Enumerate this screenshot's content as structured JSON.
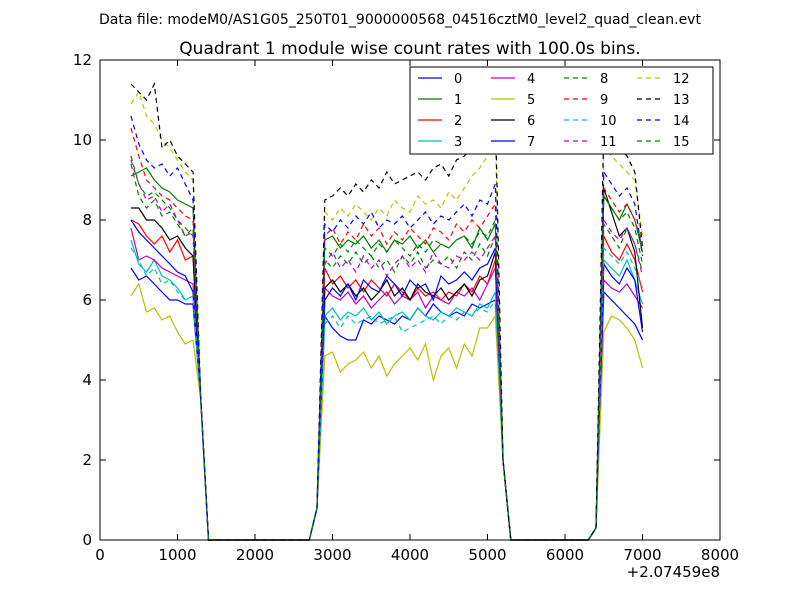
{
  "figure": {
    "suptitle": "Data file: modeM0/AS1G05_250T01_9000000568_04516cztM0_level2_quad_clean.evt"
  },
  "chart_data": {
    "type": "line",
    "title": "Quadrant 1 module wise count rates with 100.0s bins.",
    "xlabel": "",
    "ylabel": "",
    "x_offset_label": "+2.07459e8",
    "xlim": [
      0,
      8000
    ],
    "ylim": [
      0,
      12
    ],
    "xticks": [
      0,
      1000,
      2000,
      3000,
      4000,
      5000,
      6000,
      7000,
      8000
    ],
    "yticks": [
      0,
      2,
      4,
      6,
      8,
      10,
      12
    ],
    "xtick_labels": [
      "0",
      "1000",
      "2000",
      "3000",
      "4000",
      "5000",
      "6000",
      "7000",
      "8000"
    ],
    "ytick_labels": [
      "0",
      "2",
      "4",
      "6",
      "8",
      "10",
      "12"
    ],
    "grid": false,
    "legend": {
      "placement": "top-right",
      "columns": 4
    },
    "x": [
      400,
      500,
      600,
      700,
      800,
      900,
      1000,
      1100,
      1200,
      1300,
      1400,
      1500,
      1600,
      1700,
      1800,
      1900,
      2000,
      2100,
      2200,
      2300,
      2400,
      2500,
      2600,
      2700,
      2800,
      2900,
      3000,
      3100,
      3200,
      3300,
      3400,
      3500,
      3600,
      3700,
      3800,
      3900,
      4000,
      4100,
      4200,
      4300,
      4400,
      4500,
      4600,
      4700,
      4800,
      4900,
      5000,
      5100,
      5200,
      5300,
      5400,
      5500,
      5600,
      5700,
      5800,
      5900,
      6000,
      6100,
      6200,
      6300,
      6400,
      6500,
      6600,
      6700,
      6800,
      6900,
      7000,
      7100
    ],
    "series": [
      {
        "name": "0",
        "color": "#0000ff",
        "style": "solid",
        "on": [
          6.8,
          6.5,
          6.6,
          6.4,
          6.2,
          6.0,
          6.0,
          5.9,
          5.9
        ],
        "mid": [
          5.6,
          5.3,
          5.1,
          5.0,
          5.0,
          5.5,
          5.4,
          5.6,
          5.5,
          5.4,
          5.6,
          5.5,
          5.8,
          5.6,
          5.9,
          5.7,
          5.6,
          5.7,
          5.6,
          5.9,
          5.8,
          5.9,
          6.0
        ],
        "last": [
          6.2,
          6.0,
          5.8,
          5.6,
          5.4,
          5.0
        ]
      },
      {
        "name": "1",
        "color": "#008000",
        "style": "solid",
        "on": [
          9.1,
          9.2,
          9.3,
          9.0,
          8.8,
          8.7,
          8.5,
          8.4,
          8.3
        ],
        "mid": [
          7.5,
          7.6,
          7.3,
          7.5,
          7.4,
          7.6,
          7.3,
          7.5,
          7.2,
          7.5,
          7.4,
          7.6,
          7.3,
          7.5,
          7.2,
          7.4,
          7.3,
          7.5,
          7.6,
          7.3,
          7.8,
          7.5,
          7.9
        ],
        "last": [
          8.6,
          8.3,
          8.0,
          8.4,
          8.0,
          7.2
        ]
      },
      {
        "name": "2",
        "color": "#ff0000",
        "style": "solid",
        "on": [
          8.0,
          7.9,
          7.6,
          7.4,
          7.6,
          7.2,
          7.5,
          7.0,
          7.1
        ],
        "mid": [
          6.8,
          6.4,
          6.6,
          6.3,
          6.5,
          6.2,
          6.5,
          6.3,
          6.1,
          6.4,
          6.2,
          6.0,
          6.3,
          6.1,
          6.2,
          6.0,
          6.2,
          6.1,
          6.4,
          6.2,
          6.6,
          6.4,
          7.0
        ],
        "last": [
          7.6,
          7.2,
          7.0,
          7.4,
          7.0,
          6.2
        ]
      },
      {
        "name": "3",
        "color": "#00bfbf",
        "style": "solid",
        "on": [
          7.5,
          6.9,
          6.7,
          7.0,
          6.6,
          6.5,
          6.3,
          6.0,
          6.1
        ],
        "mid": [
          5.6,
          5.8,
          5.5,
          5.7,
          5.6,
          5.8,
          5.5,
          5.7,
          5.4,
          5.6,
          5.7,
          5.5,
          5.8,
          5.6,
          5.5,
          5.7,
          5.6,
          5.8,
          5.7,
          5.6,
          5.9,
          5.8,
          6.2
        ],
        "last": [
          7.0,
          6.8,
          6.6,
          7.0,
          6.5,
          5.9
        ]
      },
      {
        "name": "4",
        "color": "#bf00bf",
        "style": "solid",
        "on": [
          7.8,
          7.0,
          7.1,
          7.0,
          6.8,
          6.7,
          6.6,
          6.5,
          6.4
        ],
        "mid": [
          6.3,
          6.1,
          6.0,
          6.2,
          5.9,
          6.1,
          5.8,
          6.0,
          6.2,
          5.9,
          6.1,
          6.0,
          6.2,
          5.8,
          6.1,
          6.0,
          5.9,
          6.2,
          6.1,
          6.3,
          6.0,
          6.4,
          6.8
        ],
        "last": [
          6.5,
          6.3,
          6.2,
          6.4,
          6.1,
          5.8
        ]
      },
      {
        "name": "5",
        "color": "#bfbf00",
        "style": "solid",
        "on": [
          6.1,
          6.4,
          5.7,
          5.8,
          5.5,
          5.6,
          5.2,
          4.9,
          5.0
        ],
        "mid": [
          4.6,
          4.7,
          4.2,
          4.4,
          4.5,
          4.7,
          4.3,
          4.6,
          4.1,
          4.4,
          4.6,
          4.8,
          4.5,
          4.9,
          4.0,
          4.6,
          4.8,
          4.3,
          4.9,
          4.6,
          5.3,
          5.3,
          5.6
        ],
        "last": [
          5.2,
          5.6,
          5.5,
          5.3,
          5.0,
          4.3
        ]
      },
      {
        "name": "6",
        "color": "#000000",
        "style": "solid",
        "on": [
          8.3,
          8.3,
          8.0,
          8.0,
          7.8,
          7.5,
          7.6,
          7.3,
          7.1
        ],
        "mid": [
          6.3,
          6.5,
          6.2,
          6.4,
          6.1,
          6.3,
          6.0,
          6.2,
          6.5,
          6.1,
          6.3,
          6.0,
          6.4,
          6.2,
          6.1,
          6.3,
          6.0,
          6.2,
          6.4,
          6.1,
          6.5,
          6.6,
          7.2
        ],
        "last": [
          8.8,
          8.2,
          7.6,
          7.8,
          7.2,
          5.3
        ]
      },
      {
        "name": "7",
        "color": "#0000ff",
        "style": "solid",
        "on": [
          8.0,
          7.7,
          7.5,
          7.3,
          7.1,
          6.9,
          6.7,
          6.6,
          6.2
        ],
        "mid": [
          6.0,
          6.3,
          6.1,
          6.4,
          6.0,
          6.5,
          6.3,
          6.2,
          6.6,
          6.4,
          6.1,
          6.5,
          6.3,
          6.4,
          6.0,
          6.6,
          6.4,
          6.5,
          6.7,
          6.5,
          6.8,
          6.9,
          7.3
        ],
        "last": [
          6.9,
          6.6,
          6.4,
          6.8,
          6.5,
          5.2
        ]
      },
      {
        "name": "8",
        "color": "#008000",
        "style": "dashed",
        "on": [
          9.6,
          8.9,
          8.6,
          8.7,
          8.5,
          8.3,
          8.0,
          7.8,
          7.6
        ],
        "mid": [
          7.0,
          6.8,
          7.1,
          6.9,
          7.2,
          6.9,
          7.1,
          6.8,
          7.0,
          6.7,
          7.1,
          6.9,
          7.2,
          6.8,
          7.0,
          6.9,
          7.1,
          6.8,
          7.2,
          7.0,
          7.4,
          7.1,
          7.6
        ],
        "last": [
          7.9,
          7.6,
          7.3,
          7.8,
          7.4,
          6.7
        ]
      },
      {
        "name": "9",
        "color": "#ff0000",
        "style": "dashed",
        "on": [
          10.3,
          9.6,
          9.0,
          8.8,
          8.6,
          8.5,
          8.3,
          8.1,
          8.0
        ],
        "mid": [
          7.6,
          7.8,
          7.4,
          7.7,
          7.5,
          7.9,
          7.6,
          7.8,
          7.4,
          7.7,
          7.5,
          7.8,
          7.6,
          7.4,
          7.8,
          7.7,
          7.5,
          7.9,
          7.7,
          8.0,
          7.8,
          8.1,
          8.4
        ],
        "last": [
          8.8,
          8.5,
          8.2,
          8.4,
          8.0,
          7.4
        ]
      },
      {
        "name": "10",
        "color": "#00bfbf",
        "style": "dashed",
        "on": [
          7.3,
          7.0,
          6.6,
          6.8,
          6.4,
          6.5,
          6.2,
          6.0,
          6.1
        ],
        "mid": [
          5.4,
          5.6,
          5.3,
          5.6,
          5.4,
          5.5,
          5.6,
          5.4,
          5.5,
          5.6,
          5.2,
          5.3,
          5.4,
          5.5,
          5.6,
          5.4,
          5.6,
          5.5,
          5.7,
          5.6,
          5.8,
          5.7,
          6.0
        ],
        "last": [
          7.3,
          7.1,
          6.9,
          7.2,
          6.8,
          6.3
        ]
      },
      {
        "name": "11",
        "color": "#bf00bf",
        "style": "dashed",
        "on": [
          9.5,
          8.9,
          8.5,
          8.6,
          8.2,
          8.4,
          8.0,
          7.6,
          7.7
        ],
        "mid": [
          6.9,
          7.2,
          6.8,
          7.0,
          6.7,
          7.1,
          6.8,
          7.0,
          6.6,
          6.9,
          7.1,
          6.8,
          7.0,
          6.7,
          7.2,
          6.9,
          6.8,
          7.1,
          7.0,
          7.2,
          7.0,
          7.3,
          7.6
        ],
        "last": [
          8.0,
          7.7,
          7.5,
          7.8,
          7.4,
          6.6
        ]
      },
      {
        "name": "12",
        "color": "#bfbf00",
        "style": "dashed",
        "on": [
          10.9,
          11.2,
          10.6,
          10.4,
          10.0,
          9.8,
          9.5,
          9.2,
          9.0
        ],
        "mid": [
          8.2,
          8.0,
          8.3,
          8.1,
          8.4,
          8.2,
          8.0,
          8.3,
          8.1,
          8.5,
          8.3,
          8.2,
          8.6,
          8.4,
          8.5,
          8.3,
          8.7,
          8.5,
          8.8,
          9.1,
          9.3,
          9.6,
          10.2
        ],
        "last": [
          9.8,
          9.6,
          9.4,
          9.2,
          9.0,
          7.6
        ]
      },
      {
        "name": "13",
        "color": "#000000",
        "style": "dashed",
        "on": [
          11.4,
          11.2,
          11.0,
          11.4,
          9.8,
          10.0,
          9.6,
          9.4,
          9.2
        ],
        "mid": [
          8.5,
          8.6,
          8.8,
          8.6,
          8.9,
          8.7,
          9.0,
          8.8,
          9.2,
          8.9,
          9.0,
          9.1,
          9.2,
          9.0,
          9.3,
          9.4,
          9.1,
          9.5,
          9.6,
          9.8,
          10.0,
          10.2,
          10.8
        ],
        "last": [
          10.4,
          10.2,
          9.8,
          9.6,
          9.2,
          7.3
        ]
      },
      {
        "name": "14",
        "color": "#0000ff",
        "style": "dashed",
        "on": [
          10.6,
          9.9,
          9.5,
          9.3,
          9.4,
          9.1,
          9.3,
          8.9,
          8.5
        ],
        "mid": [
          7.9,
          7.7,
          8.0,
          7.8,
          8.1,
          7.9,
          8.2,
          7.8,
          8.0,
          7.9,
          8.1,
          7.8,
          8.0,
          8.2,
          7.9,
          8.1,
          8.0,
          8.2,
          8.4,
          8.1,
          8.5,
          8.4,
          8.9
        ],
        "last": [
          9.2,
          8.9,
          8.6,
          8.8,
          8.4,
          7.1
        ]
      },
      {
        "name": "15",
        "color": "#008000",
        "style": "dashed",
        "on": [
          9.4,
          8.6,
          8.3,
          8.5,
          8.1,
          8.2,
          7.9,
          7.6,
          7.8
        ],
        "mid": [
          7.3,
          7.1,
          7.4,
          7.2,
          7.5,
          7.3,
          7.1,
          7.4,
          7.2,
          7.5,
          7.3,
          7.1,
          7.4,
          7.2,
          7.5,
          7.4,
          7.3,
          7.5,
          7.6,
          7.4,
          7.7,
          7.6,
          8.0
        ],
        "last": [
          8.6,
          8.3,
          8.0,
          8.2,
          7.8,
          6.9
        ]
      }
    ]
  }
}
